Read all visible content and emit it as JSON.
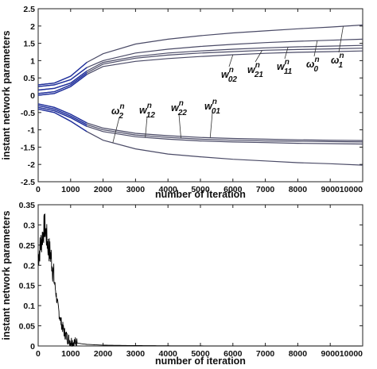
{
  "chart_data": [
    {
      "type": "line",
      "title": "",
      "xlabel": "number of iteration",
      "ylabel": "instant network parameters",
      "xlim": [
        0,
        10000
      ],
      "ylim": [
        -2.5,
        2.5
      ],
      "xticks": [
        "0",
        "1000",
        "2000",
        "3000",
        "4000",
        "5000",
        "6000",
        "7000",
        "8000",
        "9000",
        "10000"
      ],
      "yticks": [
        "2.5",
        "2",
        "1.5",
        "1",
        "0.5",
        "0",
        "-0.5",
        "-1",
        "-1.5",
        "-2",
        "-2.5"
      ],
      "grid": false,
      "legend": "none",
      "colors": {
        "line": "#4a4a66",
        "early": "#1f2f9e"
      },
      "series": [
        {
          "name": "ω1^n",
          "x": [
            0,
            500,
            1000,
            1500,
            2000,
            3000,
            4000,
            5000,
            6000,
            7000,
            8000,
            9000,
            10000
          ],
          "y": [
            0.3,
            0.35,
            0.55,
            0.95,
            1.2,
            1.48,
            1.62,
            1.72,
            1.8,
            1.86,
            1.92,
            1.97,
            2.03
          ]
        },
        {
          "name": "ω0^n",
          "x": [
            0,
            500,
            1000,
            1500,
            2000,
            3000,
            4000,
            5000,
            6000,
            7000,
            8000,
            9000,
            10000
          ],
          "y": [
            0.25,
            0.3,
            0.45,
            0.8,
            1.0,
            1.22,
            1.33,
            1.41,
            1.47,
            1.52,
            1.56,
            1.59,
            1.62
          ]
        },
        {
          "name": "w11^n",
          "x": [
            0,
            500,
            1000,
            1500,
            2000,
            3000,
            4000,
            5000,
            6000,
            7000,
            8000,
            9000,
            10000
          ],
          "y": [
            0.15,
            0.2,
            0.35,
            0.7,
            0.95,
            1.12,
            1.22,
            1.28,
            1.33,
            1.37,
            1.4,
            1.42,
            1.44
          ]
        },
        {
          "name": "w21^n",
          "x": [
            0,
            500,
            1000,
            1500,
            2000,
            3000,
            4000,
            5000,
            6000,
            7000,
            8000,
            9000,
            10000
          ],
          "y": [
            0.05,
            0.1,
            0.3,
            0.65,
            0.9,
            1.07,
            1.16,
            1.22,
            1.26,
            1.3,
            1.32,
            1.34,
            1.36
          ]
        },
        {
          "name": "w02^n",
          "x": [
            0,
            500,
            1000,
            1500,
            2000,
            3000,
            4000,
            5000,
            6000,
            7000,
            8000,
            9000,
            10000
          ],
          "y": [
            0.0,
            0.05,
            0.25,
            0.6,
            0.83,
            0.98,
            1.06,
            1.12,
            1.17,
            1.21,
            1.24,
            1.26,
            1.28
          ]
        },
        {
          "name": "w01^n",
          "x": [
            0,
            500,
            1000,
            1500,
            2000,
            3000,
            4000,
            5000,
            6000,
            7000,
            8000,
            9000,
            10000
          ],
          "y": [
            -0.25,
            -0.35,
            -0.55,
            -0.8,
            -0.95,
            -1.1,
            -1.17,
            -1.22,
            -1.25,
            -1.27,
            -1.29,
            -1.3,
            -1.31
          ]
        },
        {
          "name": "w22^n",
          "x": [
            0,
            500,
            1000,
            1500,
            2000,
            3000,
            4000,
            5000,
            6000,
            7000,
            8000,
            9000,
            10000
          ],
          "y": [
            -0.3,
            -0.4,
            -0.6,
            -0.85,
            -1.0,
            -1.15,
            -1.22,
            -1.27,
            -1.3,
            -1.32,
            -1.33,
            -1.34,
            -1.35
          ]
        },
        {
          "name": "w12^n",
          "x": [
            0,
            500,
            1000,
            1500,
            2000,
            3000,
            4000,
            5000,
            6000,
            7000,
            8000,
            9000,
            10000
          ],
          "y": [
            -0.35,
            -0.45,
            -0.65,
            -0.9,
            -1.05,
            -1.2,
            -1.27,
            -1.32,
            -1.35,
            -1.37,
            -1.39,
            -1.4,
            -1.41
          ]
        },
        {
          "name": "ω2^n",
          "x": [
            0,
            500,
            1000,
            1500,
            2000,
            3000,
            4000,
            5000,
            6000,
            7000,
            8000,
            9000,
            10000
          ],
          "y": [
            -0.4,
            -0.5,
            -0.75,
            -1.05,
            -1.3,
            -1.55,
            -1.7,
            -1.78,
            -1.85,
            -1.9,
            -1.95,
            -1.98,
            -2.02
          ]
        }
      ],
      "annotations": [
        {
          "base": "w",
          "sup": "n",
          "sub": "02",
          "series": "w02^n"
        },
        {
          "base": "w",
          "sup": "n",
          "sub": "21",
          "series": "w21^n"
        },
        {
          "base": "w",
          "sup": "n",
          "sub": "11",
          "series": "w11^n"
        },
        {
          "base": "ω",
          "sup": "n",
          "sub": "0",
          "series": "ω0^n"
        },
        {
          "base": "ω",
          "sup": "n",
          "sub": "1",
          "series": "ω1^n"
        },
        {
          "base": "ω",
          "sup": "n",
          "sub": "2",
          "series": "ω2^n"
        },
        {
          "base": "w",
          "sup": "n",
          "sub": "12",
          "series": "w12^n"
        },
        {
          "base": "w",
          "sup": "n",
          "sub": "22",
          "series": "w22^n"
        },
        {
          "base": "w",
          "sup": "n",
          "sub": "01",
          "series": "w01^n"
        }
      ]
    },
    {
      "type": "line",
      "title": "",
      "xlabel": "number of iteration",
      "ylabel": "instant network parameters",
      "xlim": [
        0,
        10000
      ],
      "ylim": [
        0,
        0.35
      ],
      "xticks": [
        "0",
        "1000",
        "2000",
        "3000",
        "4000",
        "5000",
        "6000",
        "7000",
        "8000",
        "9000",
        "10000"
      ],
      "yticks": [
        "0.35",
        "0.3",
        "0.25",
        "0.2",
        "0.15",
        "0.1",
        "0.05",
        "0"
      ],
      "grid": false,
      "legend": "none",
      "colors": {
        "line": "#000000"
      },
      "series": [
        {
          "x": [
            0,
            100,
            200,
            300,
            400,
            500,
            600,
            700,
            800,
            900,
            1000,
            1200,
            1500,
            2000,
            3000,
            4000,
            5000,
            6000,
            7000,
            8000,
            9000,
            10000
          ],
          "y": [
            0.22,
            0.26,
            0.3,
            0.25,
            0.22,
            0.16,
            0.1,
            0.06,
            0.035,
            0.02,
            0.012,
            0.007,
            0.004,
            0.002,
            0.001,
            0.0005,
            0.0003,
            0.0002,
            0.0001,
            0.0001,
            0.0001,
            0.0
          ]
        }
      ]
    }
  ]
}
